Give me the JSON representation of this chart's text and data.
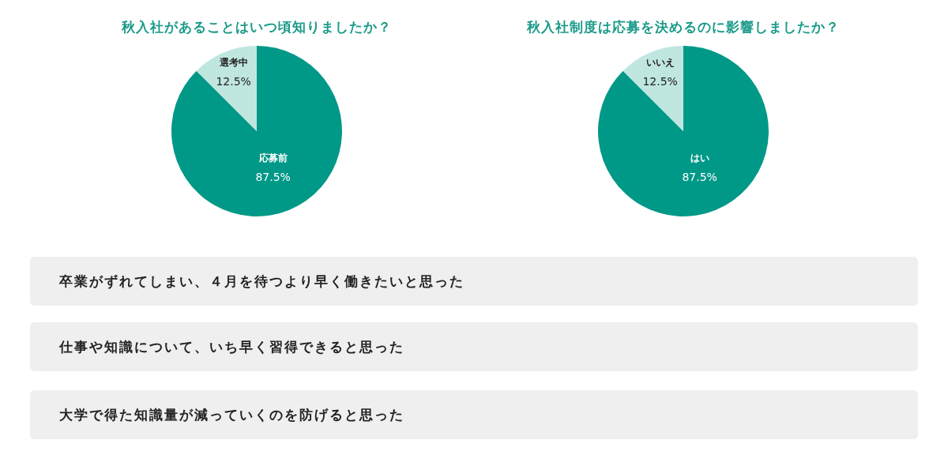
{
  "chart_data": [
    {
      "type": "pie",
      "title": "秋入社があることはいつ頃知りましたか？",
      "categories": [
        "応募前",
        "選考中"
      ],
      "values": [
        87.5,
        12.5
      ],
      "colors": [
        "#009887",
        "#c0e6e0"
      ],
      "value_labels": [
        "87.5%",
        "12.5%"
      ]
    },
    {
      "type": "pie",
      "title": "秋入社制度は応募を決めるのに影響しましたか？",
      "categories": [
        "はい",
        "いいえ"
      ],
      "values": [
        87.5,
        12.5
      ],
      "colors": [
        "#009887",
        "#c0e6e0"
      ],
      "value_labels": [
        "87.5%",
        "12.5%"
      ]
    },
    {
      "type": "other",
      "annotations": [
        "卒業がずれてしまい、４月を待つより早く働きたいと思った",
        "仕事や知識について、いち早く習得できると思った",
        "大学で得た知識量が減っていくのを防げると思った"
      ]
    }
  ]
}
